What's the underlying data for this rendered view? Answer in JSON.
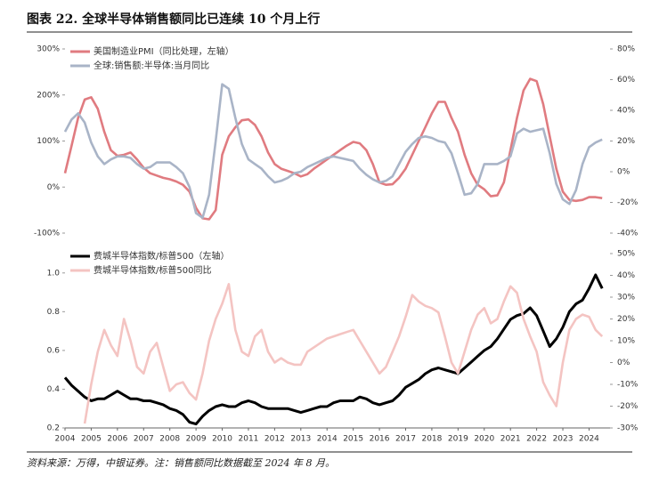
{
  "title": "图表 22. 全球半导体销售额同比已连续 10 个月上行",
  "note": "资料来源：万得，中银证券。注：销售额同比数据截至 2024 年 8 月。",
  "chart_data": [
    {
      "type": "line",
      "legend": "upper left",
      "x": [
        2004,
        2004.25,
        2004.5,
        2004.75,
        2005,
        2005.25,
        2005.5,
        2005.75,
        2006,
        2006.25,
        2006.5,
        2006.75,
        2007,
        2007.25,
        2007.5,
        2007.75,
        2008,
        2008.25,
        2008.5,
        2008.75,
        2009,
        2009.25,
        2009.5,
        2009.75,
        2010,
        2010.25,
        2010.5,
        2010.75,
        2011,
        2011.25,
        2011.5,
        2011.75,
        2012,
        2012.25,
        2012.5,
        2012.75,
        2013,
        2013.25,
        2013.5,
        2013.75,
        2014,
        2014.25,
        2014.5,
        2014.75,
        2015,
        2015.25,
        2015.5,
        2015.75,
        2016,
        2016.25,
        2016.5,
        2016.75,
        2017,
        2017.25,
        2017.5,
        2017.75,
        2018,
        2018.25,
        2018.5,
        2018.75,
        2019,
        2019.25,
        2019.5,
        2019.75,
        2020,
        2020.25,
        2020.5,
        2020.75,
        2021,
        2021.25,
        2021.5,
        2021.75,
        2022,
        2022.25,
        2022.5,
        2022.75,
        2023,
        2023.25,
        2023.5,
        2023.75,
        2024,
        2024.25,
        2024.5
      ],
      "xlim": [
        2004,
        2024.8
      ],
      "ylim": [
        -100,
        300
      ],
      "yticks": [
        {
          "value": 300,
          "label": "300%"
        },
        {
          "value": 200,
          "label": "200%"
        },
        {
          "value": 100,
          "label": "100%"
        },
        {
          "value": 0,
          "label": "0%"
        },
        {
          "value": -100,
          "label": "-100%"
        }
      ],
      "y2lim": [
        -40,
        80
      ],
      "y2ticks": [
        {
          "value": 80,
          "label": "80%"
        },
        {
          "value": 60,
          "label": "60%"
        },
        {
          "value": 40,
          "label": "40%"
        },
        {
          "value": 20,
          "label": "20%"
        },
        {
          "value": 0,
          "label": "0%"
        },
        {
          "value": -20,
          "label": "-20%"
        },
        {
          "value": -40,
          "label": "-40%"
        }
      ],
      "series": [
        {
          "name": "美国制造业PMI（同比处理，左轴）",
          "color": "#e07b80",
          "axis": "y",
          "values": [
            30,
            90,
            150,
            190,
            195,
            170,
            120,
            80,
            68,
            70,
            75,
            60,
            42,
            30,
            25,
            20,
            17,
            12,
            5,
            -10,
            -45,
            -68,
            -70,
            -50,
            70,
            110,
            130,
            145,
            147,
            135,
            110,
            75,
            50,
            40,
            35,
            30,
            23,
            28,
            40,
            50,
            60,
            70,
            80,
            90,
            98,
            95,
            80,
            50,
            10,
            5,
            6,
            20,
            40,
            70,
            100,
            130,
            160,
            185,
            185,
            150,
            120,
            70,
            30,
            5,
            -5,
            -20,
            -18,
            10,
            80,
            150,
            210,
            235,
            230,
            180,
            110,
            40,
            -10,
            -28,
            -30,
            -28,
            -22,
            -22,
            -24
          ]
        },
        {
          "name": "全球:销售额:半导体:当月同比",
          "color": "#a9b4c7",
          "axis": "y2",
          "values": [
            26,
            34,
            38,
            32,
            19,
            10,
            5,
            8,
            10,
            10,
            9,
            5,
            2,
            3,
            6,
            6,
            6,
            3,
            -1,
            -10,
            -27,
            -30,
            -15,
            20,
            57,
            54,
            35,
            18,
            8,
            5,
            2,
            -3,
            -7,
            -6,
            -4,
            -1,
            0,
            3,
            5,
            7,
            9,
            10,
            9,
            8,
            7,
            2,
            -2,
            -5,
            -7,
            -6,
            -3,
            5,
            13,
            18,
            22,
            23,
            22,
            20,
            19,
            12,
            -1,
            -15,
            -14,
            -8,
            5,
            5,
            5,
            7,
            10,
            25,
            28,
            26,
            27,
            28,
            12,
            -8,
            -18,
            -21,
            -12,
            5,
            16,
            19,
            21
          ]
        }
      ]
    },
    {
      "type": "line",
      "legend": "upper left",
      "x": [
        2004,
        2004.25,
        2004.5,
        2004.75,
        2005,
        2005.25,
        2005.5,
        2005.75,
        2006,
        2006.25,
        2006.5,
        2006.75,
        2007,
        2007.25,
        2007.5,
        2007.75,
        2008,
        2008.25,
        2008.5,
        2008.75,
        2009,
        2009.25,
        2009.5,
        2009.75,
        2010,
        2010.25,
        2010.5,
        2010.75,
        2011,
        2011.25,
        2011.5,
        2011.75,
        2012,
        2012.25,
        2012.5,
        2012.75,
        2013,
        2013.25,
        2013.5,
        2013.75,
        2014,
        2014.25,
        2014.5,
        2014.75,
        2015,
        2015.25,
        2015.5,
        2015.75,
        2016,
        2016.25,
        2016.5,
        2016.75,
        2017,
        2017.25,
        2017.5,
        2017.75,
        2018,
        2018.25,
        2018.5,
        2018.75,
        2019,
        2019.25,
        2019.5,
        2019.75,
        2020,
        2020.25,
        2020.5,
        2020.75,
        2021,
        2021.25,
        2021.5,
        2021.75,
        2022,
        2022.25,
        2022.5,
        2022.75,
        2023,
        2023.25,
        2023.5,
        2023.75,
        2024,
        2024.25,
        2024.5
      ],
      "xlim": [
        2004,
        2024.8
      ],
      "xticks": [
        2004,
        2005,
        2006,
        2007,
        2008,
        2009,
        2010,
        2011,
        2012,
        2013,
        2014,
        2015,
        2016,
        2017,
        2018,
        2019,
        2020,
        2021,
        2022,
        2023,
        2024
      ],
      "ylim": [
        0.2,
        1.1
      ],
      "yticks": [
        {
          "value": 1,
          "label": "1.0"
        },
        0.8,
        0.6,
        0.4,
        0.2
      ],
      "y2lim": [
        -30,
        50
      ],
      "y2ticks": [
        {
          "value": 50,
          "label": "50%"
        },
        {
          "value": 40,
          "label": "40%"
        },
        {
          "value": 30,
          "label": "30%"
        },
        {
          "value": 20,
          "label": "20%"
        },
        {
          "value": 10,
          "label": "10%"
        },
        {
          "value": 0,
          "label": "0%"
        },
        {
          "value": -10,
          "label": "-10%"
        },
        {
          "value": -20,
          "label": "-20%"
        },
        {
          "value": -30,
          "label": "-30%"
        }
      ],
      "series": [
        {
          "name": "费城半导体指数/标普500（左轴）",
          "color": "#000000",
          "axis": "y",
          "values": [
            0.46,
            0.42,
            0.39,
            0.36,
            0.34,
            0.35,
            0.35,
            0.37,
            0.39,
            0.37,
            0.35,
            0.35,
            0.34,
            0.34,
            0.33,
            0.32,
            0.3,
            0.29,
            0.27,
            0.23,
            0.22,
            0.26,
            0.29,
            0.31,
            0.32,
            0.31,
            0.31,
            0.33,
            0.34,
            0.33,
            0.31,
            0.3,
            0.3,
            0.3,
            0.3,
            0.29,
            0.28,
            0.29,
            0.3,
            0.31,
            0.31,
            0.33,
            0.34,
            0.34,
            0.34,
            0.36,
            0.35,
            0.33,
            0.32,
            0.33,
            0.34,
            0.37,
            0.41,
            0.43,
            0.45,
            0.48,
            0.5,
            0.51,
            0.5,
            0.49,
            0.48,
            0.51,
            0.54,
            0.57,
            0.6,
            0.62,
            0.66,
            0.71,
            0.76,
            0.78,
            0.79,
            0.82,
            0.78,
            0.7,
            0.62,
            0.66,
            0.72,
            0.8,
            0.84,
            0.86,
            0.92,
            0.99,
            0.92
          ]
        },
        {
          "name": "费城半导体指数/标普500同比",
          "color": "#f4c4c2",
          "axis": "y2",
          "values": [
            null,
            null,
            null,
            -28,
            -10,
            5,
            15,
            8,
            3,
            20,
            10,
            -2,
            -5,
            5,
            9,
            -2,
            -13,
            -10,
            -9,
            -14,
            -17,
            -5,
            10,
            20,
            27,
            36,
            15,
            5,
            3,
            12,
            15,
            5,
            0,
            2,
            0,
            -1,
            -1,
            5,
            7,
            9,
            11,
            12,
            13,
            14,
            15,
            10,
            5,
            0,
            -5,
            -2,
            5,
            12,
            21,
            31,
            28,
            26,
            25,
            23,
            12,
            0,
            -5,
            5,
            15,
            22,
            25,
            18,
            20,
            28,
            35,
            32,
            20,
            12,
            5,
            -9,
            -15,
            -20,
            0,
            15,
            20,
            22,
            21,
            15,
            12
          ]
        }
      ]
    }
  ]
}
